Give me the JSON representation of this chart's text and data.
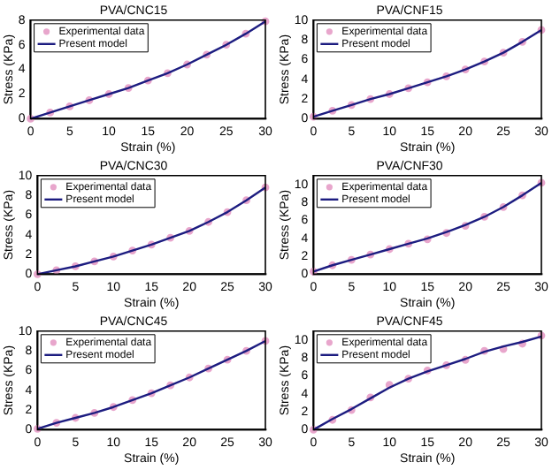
{
  "chart_data": [
    {
      "type": "line",
      "title": "PVA/CNC15",
      "xlabel": "Strain (%)",
      "ylabel": "Stress (KPa)",
      "xlim": [
        0,
        30
      ],
      "xticks": [
        0,
        5,
        10,
        15,
        20,
        25,
        30
      ],
      "ylim": [
        0,
        8
      ],
      "yticks": [
        0,
        2,
        4,
        6,
        8
      ],
      "grid": false,
      "legend": "top left",
      "x": [
        0,
        2.5,
        5,
        7.5,
        10,
        12.5,
        15,
        17.5,
        20,
        22.5,
        25,
        27.5,
        30
      ],
      "series": [
        {
          "name": "Experimental data",
          "type": "scatter",
          "marker": "circle",
          "color": "#e8a6cc",
          "values": [
            0,
            0.5,
            1.0,
            1.5,
            2.0,
            2.5,
            3.1,
            3.7,
            4.4,
            5.2,
            6.0,
            6.9,
            7.9
          ]
        },
        {
          "name": "Present model",
          "type": "line",
          "marker": "none",
          "color": "#1c1c80",
          "values": [
            0,
            0.5,
            1.0,
            1.5,
            2.0,
            2.5,
            3.1,
            3.7,
            4.4,
            5.2,
            6.0,
            6.9,
            7.9
          ]
        }
      ]
    },
    {
      "type": "line",
      "title": "PVA/CNF15",
      "xlabel": "Strain (%)",
      "ylabel": "Stress (KPa)",
      "xlim": [
        0,
        30
      ],
      "xticks": [
        0,
        5,
        10,
        15,
        20,
        25,
        30
      ],
      "ylim": [
        0,
        10
      ],
      "yticks": [
        0,
        2,
        4,
        6,
        8,
        10
      ],
      "grid": false,
      "legend": "top left",
      "x": [
        0,
        2.5,
        5,
        7.5,
        10,
        12.5,
        15,
        17.5,
        20,
        22.5,
        25,
        27.5,
        30
      ],
      "series": [
        {
          "name": "Experimental data",
          "type": "scatter",
          "marker": "circle",
          "color": "#e8a6cc",
          "values": [
            0.2,
            0.8,
            1.4,
            2.0,
            2.5,
            3.1,
            3.7,
            4.3,
            5.0,
            5.8,
            6.7,
            7.8,
            9.0
          ]
        },
        {
          "name": "Present model",
          "type": "line",
          "marker": "none",
          "color": "#1c1c80",
          "values": [
            0.2,
            0.8,
            1.4,
            2.0,
            2.5,
            3.1,
            3.7,
            4.3,
            5.0,
            5.8,
            6.7,
            7.8,
            9.0
          ]
        }
      ]
    },
    {
      "type": "line",
      "title": "PVA/CNC30",
      "xlabel": "Strain (%)",
      "ylabel": "Stress (KPa)",
      "xlim": [
        0,
        30
      ],
      "xticks": [
        0,
        5,
        10,
        15,
        20,
        25,
        30
      ],
      "ylim": [
        0,
        10
      ],
      "yticks": [
        0,
        2,
        4,
        6,
        8,
        10
      ],
      "grid": false,
      "legend": "top left",
      "x": [
        0,
        2.5,
        5,
        7.5,
        10,
        12.5,
        15,
        17.5,
        20,
        22.5,
        25,
        27.5,
        30
      ],
      "series": [
        {
          "name": "Experimental data",
          "type": "scatter",
          "marker": "circle",
          "color": "#e8a6cc",
          "values": [
            0,
            0.4,
            0.8,
            1.3,
            1.8,
            2.4,
            3.0,
            3.7,
            4.4,
            5.3,
            6.3,
            7.5,
            8.8
          ]
        },
        {
          "name": "Present model",
          "type": "line",
          "marker": "none",
          "color": "#1c1c80",
          "values": [
            0,
            0.4,
            0.8,
            1.3,
            1.8,
            2.4,
            3.0,
            3.7,
            4.4,
            5.3,
            6.3,
            7.5,
            8.8
          ]
        }
      ]
    },
    {
      "type": "line",
      "title": "PVA/CNF30",
      "xlabel": "Strain (%)",
      "ylabel": "Stress (KPa)",
      "xlim": [
        0,
        30
      ],
      "xticks": [
        0,
        5,
        10,
        15,
        20,
        25,
        30
      ],
      "ylim": [
        0,
        11
      ],
      "yticks": [
        0,
        2,
        4,
        6,
        8,
        10
      ],
      "grid": false,
      "legend": "top left",
      "x": [
        0,
        2.5,
        5,
        7.5,
        10,
        12.5,
        15,
        17.5,
        20,
        22.5,
        25,
        27.5,
        30
      ],
      "series": [
        {
          "name": "Experimental data",
          "type": "scatter",
          "marker": "circle",
          "color": "#e8a6cc",
          "values": [
            0.3,
            1.0,
            1.6,
            2.2,
            2.8,
            3.4,
            3.9,
            4.6,
            5.4,
            6.4,
            7.5,
            8.8,
            10.2
          ]
        },
        {
          "name": "Present model",
          "type": "line",
          "marker": "none",
          "color": "#1c1c80",
          "values": [
            0.3,
            1.0,
            1.6,
            2.2,
            2.8,
            3.4,
            4.0,
            4.7,
            5.5,
            6.4,
            7.5,
            8.8,
            10.2
          ]
        }
      ]
    },
    {
      "type": "line",
      "title": "PVA/CNC45",
      "xlabel": "Strain (%)",
      "ylabel": "Stress (KPa)",
      "xlim": [
        0,
        30
      ],
      "xticks": [
        0,
        5,
        10,
        15,
        20,
        25,
        30
      ],
      "ylim": [
        0,
        10
      ],
      "yticks": [
        0,
        2,
        4,
        6,
        8,
        10
      ],
      "grid": false,
      "legend": "top left",
      "x": [
        0,
        2.5,
        5,
        7.5,
        10,
        12.5,
        15,
        17.5,
        20,
        22.5,
        25,
        27.5,
        30
      ],
      "series": [
        {
          "name": "Experimental data",
          "type": "scatter",
          "marker": "circle",
          "color": "#e8a6cc",
          "values": [
            0.1,
            0.7,
            1.2,
            1.7,
            2.3,
            3.0,
            3.7,
            4.5,
            5.3,
            6.2,
            7.1,
            8.0,
            9.0
          ]
        },
        {
          "name": "Present model",
          "type": "line",
          "marker": "none",
          "color": "#1c1c80",
          "values": [
            0.1,
            0.7,
            1.2,
            1.7,
            2.3,
            3.0,
            3.7,
            4.5,
            5.3,
            6.2,
            7.1,
            8.0,
            9.0
          ]
        }
      ]
    },
    {
      "type": "line",
      "title": "PVA/CNF45",
      "xlabel": "Strain (%)",
      "ylabel": "Stress (KPa)",
      "xlim": [
        0,
        30
      ],
      "xticks": [
        0,
        5,
        10,
        15,
        20,
        25,
        30
      ],
      "ylim": [
        0,
        11
      ],
      "yticks": [
        0,
        2,
        4,
        6,
        8,
        10
      ],
      "grid": false,
      "legend": "top left",
      "x": [
        0,
        2.5,
        5,
        7.5,
        10,
        12.5,
        15,
        17.5,
        20,
        22.5,
        25,
        27.5,
        30
      ],
      "series": [
        {
          "name": "Experimental data",
          "type": "scatter",
          "marker": "circle",
          "color": "#e8a6cc",
          "values": [
            0,
            1.1,
            2.2,
            3.6,
            5.0,
            5.7,
            6.6,
            7.2,
            7.8,
            8.8,
            9.0,
            9.6,
            10.5
          ]
        },
        {
          "name": "Present model",
          "type": "line",
          "marker": "none",
          "color": "#1c1c80",
          "values": [
            0,
            1.2,
            2.3,
            3.5,
            4.7,
            5.7,
            6.5,
            7.2,
            7.9,
            8.7,
            9.3,
            9.8,
            10.4
          ]
        }
      ]
    }
  ]
}
